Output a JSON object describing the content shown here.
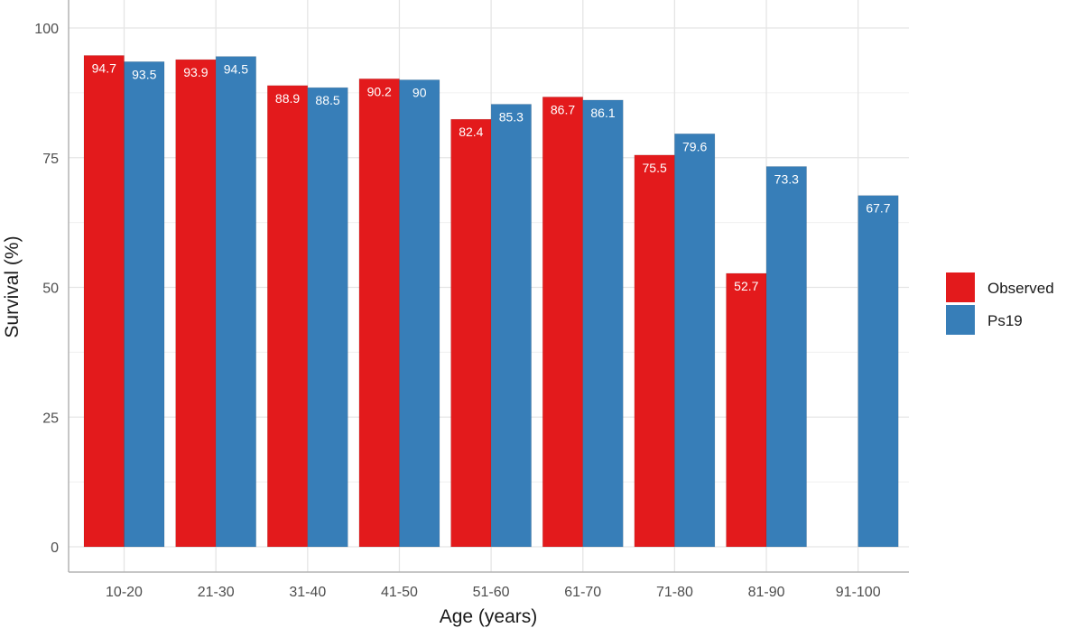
{
  "chart_data": {
    "type": "bar",
    "categories": [
      "10-20",
      "21-30",
      "31-40",
      "41-50",
      "51-60",
      "61-70",
      "71-80",
      "81-90",
      "91-100"
    ],
    "series": [
      {
        "name": "Observed",
        "color": "#e31a1c",
        "values": [
          94.7,
          93.9,
          88.9,
          90.2,
          82.4,
          86.7,
          75.5,
          52.7,
          null
        ],
        "labels": [
          "94.7",
          "93.9",
          "88.9",
          "90.2",
          "82.4",
          "86.7",
          "75.5",
          "52.7",
          ""
        ]
      },
      {
        "name": "Ps19",
        "color": "#377eb8",
        "values": [
          93.5,
          94.5,
          88.5,
          90,
          85.3,
          86.1,
          79.6,
          73.3,
          67.7
        ],
        "labels": [
          "93.5",
          "94.5",
          "88.5",
          "90",
          "85.3",
          "86.1",
          "79.6",
          "73.3",
          "67.7"
        ]
      }
    ],
    "xlabel": "Age (years)",
    "ylabel": "Survival (%)",
    "ylim": [
      0,
      100
    ],
    "yticks": [
      0,
      25,
      50,
      75,
      100
    ],
    "ytick_labels": [
      "0",
      "25",
      "50",
      "75",
      "100"
    ],
    "grid": true,
    "legend_position": "right"
  }
}
